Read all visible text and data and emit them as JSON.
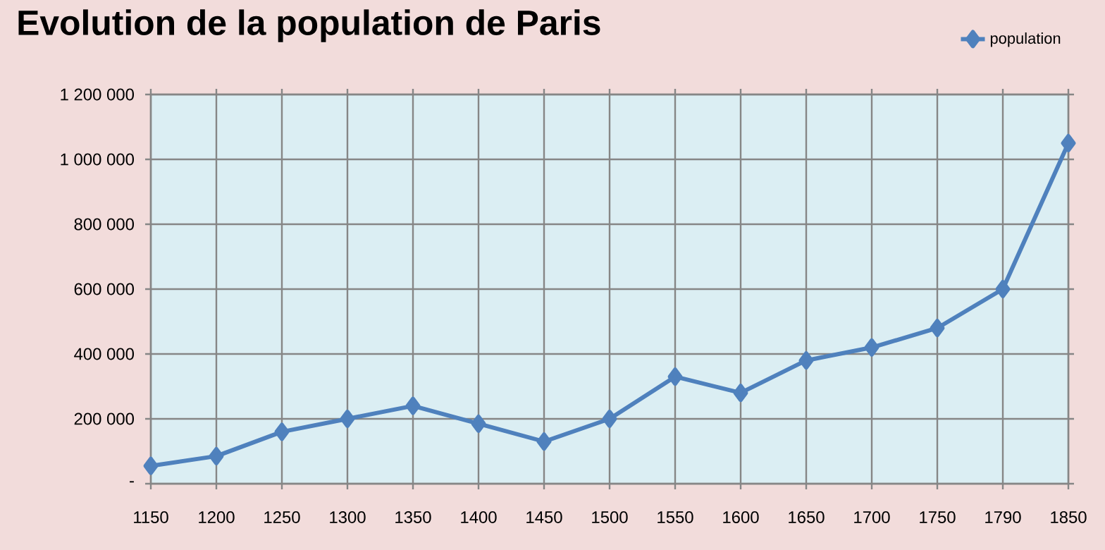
{
  "chart_data": {
    "type": "line",
    "title": "Evolution de la population de Paris",
    "categories": [
      "1150",
      "1200",
      "1250",
      "1300",
      "1350",
      "1400",
      "1450",
      "1500",
      "1550",
      "1600",
      "1650",
      "1700",
      "1750",
      "1790",
      "1850"
    ],
    "series": [
      {
        "name": "population",
        "color": "#4f81bd",
        "values": [
          55000,
          85000,
          160000,
          200000,
          240000,
          185000,
          130000,
          200000,
          330000,
          280000,
          380000,
          420000,
          480000,
          600000,
          1050000
        ]
      }
    ],
    "ylim": [
      0,
      1200000
    ],
    "yticks": [
      {
        "value": 0,
        "label": "-"
      },
      {
        "value": 200000,
        "label": "200 000"
      },
      {
        "value": 400000,
        "label": "400 000"
      },
      {
        "value": 600000,
        "label": "600 000"
      },
      {
        "value": 800000,
        "label": "800 000"
      },
      {
        "value": 1000000,
        "label": "1 000 000"
      },
      {
        "value": 1200000,
        "label": "1 200 000"
      }
    ],
    "grid": true,
    "legend": "top right",
    "marker": "diamond",
    "line_style": "solid"
  }
}
